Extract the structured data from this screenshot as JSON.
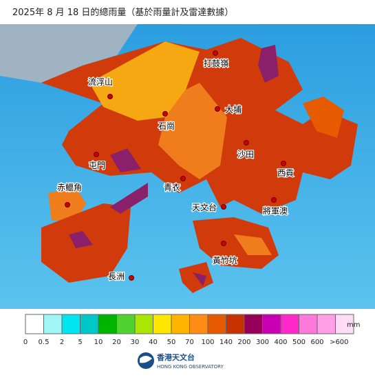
{
  "header": {
    "title": "2025年 8 月 18 日的總雨量（基於雨量計及雷達數據）"
  },
  "places": [
    {
      "label": "打鼓嶺",
      "dot": [
        313,
        77
      ],
      "at": [
        314,
        92
      ]
    },
    {
      "label": "流浮山",
      "dot": [
        160,
        140
      ],
      "at": [
        146,
        119
      ]
    },
    {
      "label": "大埔",
      "dot": [
        316,
        158
      ],
      "at": [
        339,
        159
      ]
    },
    {
      "label": "石崗",
      "dot": [
        240,
        165
      ],
      "at": [
        242,
        183
      ]
    },
    {
      "label": "沙田",
      "dot": [
        358,
        207
      ],
      "at": [
        357,
        224
      ]
    },
    {
      "label": "屯門",
      "dot": [
        140,
        224
      ],
      "at": [
        141,
        240
      ]
    },
    {
      "label": "西貢",
      "dot": [
        412,
        237
      ],
      "at": [
        415,
        251
      ]
    },
    {
      "label": "赤鱲角",
      "dot": [
        98,
        297
      ],
      "at": [
        101,
        272
      ]
    },
    {
      "label": "青衣",
      "dot": [
        266,
        259
      ],
      "at": [
        250,
        272
      ]
    },
    {
      "label": "天文台",
      "dot": [
        325,
        300
      ],
      "at": [
        297,
        301
      ]
    },
    {
      "label": "將軍澳",
      "dot": [
        398,
        290
      ],
      "at": [
        400,
        306
      ]
    },
    {
      "label": "黃竹坑",
      "dot": [
        325,
        353
      ],
      "at": [
        327,
        378
      ]
    },
    {
      "label": "長洲",
      "dot": [
        191,
        403
      ],
      "at": [
        169,
        401
      ]
    }
  ],
  "legend": {
    "colors": [
      "#ffffff",
      "#a0f5f5",
      "#00e6f0",
      "#00c8c8",
      "#00b400",
      "#50d232",
      "#aae600",
      "#ffe600",
      "#ffb400",
      "#ff8c14",
      "#e65a00",
      "#c83200",
      "#96005a",
      "#c800b4",
      "#ff28c8",
      "#ff78dc",
      "#ffa0e6",
      "#ffdcf5"
    ],
    "labels": [
      "0",
      "0.5",
      "2",
      "5",
      "10",
      "20",
      "30",
      "40",
      "50",
      "70",
      "100",
      "140",
      "200",
      "300",
      "400",
      "500",
      "600",
      ">600"
    ],
    "unit": "mm"
  },
  "logo": {
    "name": "香港天文台",
    "name_en": "HONG KONG OBSERVATORY"
  }
}
